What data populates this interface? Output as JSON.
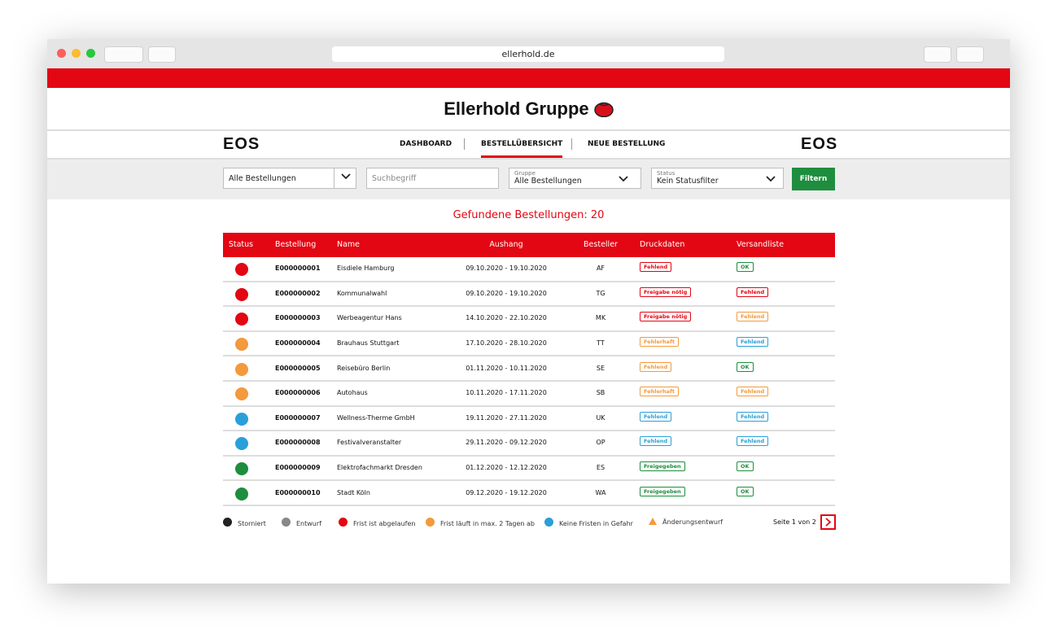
{
  "browser": {
    "url": "ellerhold.de"
  },
  "header": {
    "title": "Ellerhold Gruppe"
  },
  "nav": {
    "logos": [
      "EOS",
      "EOS"
    ],
    "items": [
      "DASHBOARD",
      "BESTELLÜBERSICHT",
      "NEUE BESTELLUNG"
    ],
    "active": 1
  },
  "filters": {
    "order_select": "Alle Bestellungen",
    "search_placeholder": "Suchbegriff",
    "group_label": "Gruppe",
    "group_value": "Alle Bestellungen",
    "status_label": "Status",
    "status_value": "Kein Statusfilter",
    "button": "Filtern"
  },
  "results": "Gefundene Bestellungen: 20",
  "table": {
    "columns": [
      "Status",
      "Bestellung",
      "Name",
      "Aushang",
      "Besteller",
      "Druckdaten",
      "Versandliste"
    ],
    "rows": [
      {
        "status": "#e30613",
        "id": "E000000001",
        "name": "Eisdiele Hamburg",
        "aushang": "09.10.2020 - 19.10.2020",
        "besteller": "AF",
        "druckdaten": {
          "label": "Fehlend",
          "color": "#e30613"
        },
        "versandliste": {
          "label": "OK",
          "color": "#1e8e3e"
        }
      },
      {
        "status": "#e30613",
        "id": "E000000002",
        "name": "Kommunalwahl",
        "aushang": "09.10.2020 - 19.10.2020",
        "besteller": "TG",
        "druckdaten": {
          "label": "Freigabe nötig",
          "color": "#e30613"
        },
        "versandliste": {
          "label": "Fehlend",
          "color": "#e30613"
        }
      },
      {
        "status": "#e30613",
        "id": "E000000003",
        "name": "Werbeagentur Hans",
        "aushang": "14.10.2020 - 22.10.2020",
        "besteller": "MK",
        "druckdaten": {
          "label": "Freigabe nötig",
          "color": "#e30613"
        },
        "versandliste": {
          "label": "Fehlend",
          "color": "#f39a3d"
        }
      },
      {
        "status": "#f39a3d",
        "id": "E000000004",
        "name": "Brauhaus Stuttgart",
        "aushang": "17.10.2020 - 28.10.2020",
        "besteller": "TT",
        "druckdaten": {
          "label": "Fehlerhaft",
          "color": "#f39a3d"
        },
        "versandliste": {
          "label": "Fehlend",
          "color": "#2b9fd9"
        }
      },
      {
        "status": "#f39a3d",
        "id": "E000000005",
        "name": "Reisebüro Berlin",
        "aushang": "01.11.2020 - 10.11.2020",
        "besteller": "SE",
        "druckdaten": {
          "label": "Fehlend",
          "color": "#f39a3d"
        },
        "versandliste": {
          "label": "OK",
          "color": "#1e8e3e"
        }
      },
      {
        "status": "#f39a3d",
        "id": "E000000006",
        "name": "Autohaus",
        "aushang": "10.11.2020 - 17.11.2020",
        "besteller": "SB",
        "druckdaten": {
          "label": "Fehlerhaft",
          "color": "#f39a3d"
        },
        "versandliste": {
          "label": "Fehlend",
          "color": "#f39a3d"
        }
      },
      {
        "status": "#2b9fd9",
        "id": "E000000007",
        "name": "Wellness-Therme GmbH",
        "aushang": "19.11.2020 - 27.11.2020",
        "besteller": "UK",
        "druckdaten": {
          "label": "Fehlend",
          "color": "#2b9fd9"
        },
        "versandliste": {
          "label": "Fehlend",
          "color": "#2b9fd9"
        }
      },
      {
        "status": "#2b9fd9",
        "id": "E000000008",
        "name": "Festivalveranstalter",
        "aushang": "29.11.2020 - 09.12.2020",
        "besteller": "OP",
        "druckdaten": {
          "label": "Fehlend",
          "color": "#2b9fd9"
        },
        "versandliste": {
          "label": "Fehlend",
          "color": "#2b9fd9"
        }
      },
      {
        "status": "#1e8e3e",
        "id": "E000000009",
        "name": "Elektrofachmarkt Dresden",
        "aushang": "01.12.2020 - 12.12.2020",
        "besteller": "ES",
        "druckdaten": {
          "label": "Freigegeben",
          "color": "#1e8e3e"
        },
        "versandliste": {
          "label": "OK",
          "color": "#1e8e3e"
        }
      },
      {
        "status": "#1e8e3e",
        "id": "E000000010",
        "name": "Stadt Köln",
        "aushang": "09.12.2020 - 19.12.2020",
        "besteller": "WA",
        "druckdaten": {
          "label": "Freigegeben",
          "color": "#1e8e3e"
        },
        "versandliste": {
          "label": "OK",
          "color": "#1e8e3e"
        }
      }
    ]
  },
  "legend": [
    {
      "label": "Storniert",
      "color": "#222222",
      "shape": "circle"
    },
    {
      "label": "Entwurf",
      "color": "#888888",
      "shape": "circle"
    },
    {
      "label": "Frist ist abgelaufen",
      "color": "#e30613",
      "shape": "circle"
    },
    {
      "label": "Frist läuft in max. 2 Tagen ab",
      "color": "#f39a3d",
      "shape": "circle"
    },
    {
      "label": "Keine Fristen in Gefahr",
      "color": "#2b9fd9",
      "shape": "circle"
    },
    {
      "label": "Änderungsentwurf",
      "color": "#f39a3d",
      "shape": "triangle"
    }
  ],
  "pagination": "Seite 1 von 2"
}
